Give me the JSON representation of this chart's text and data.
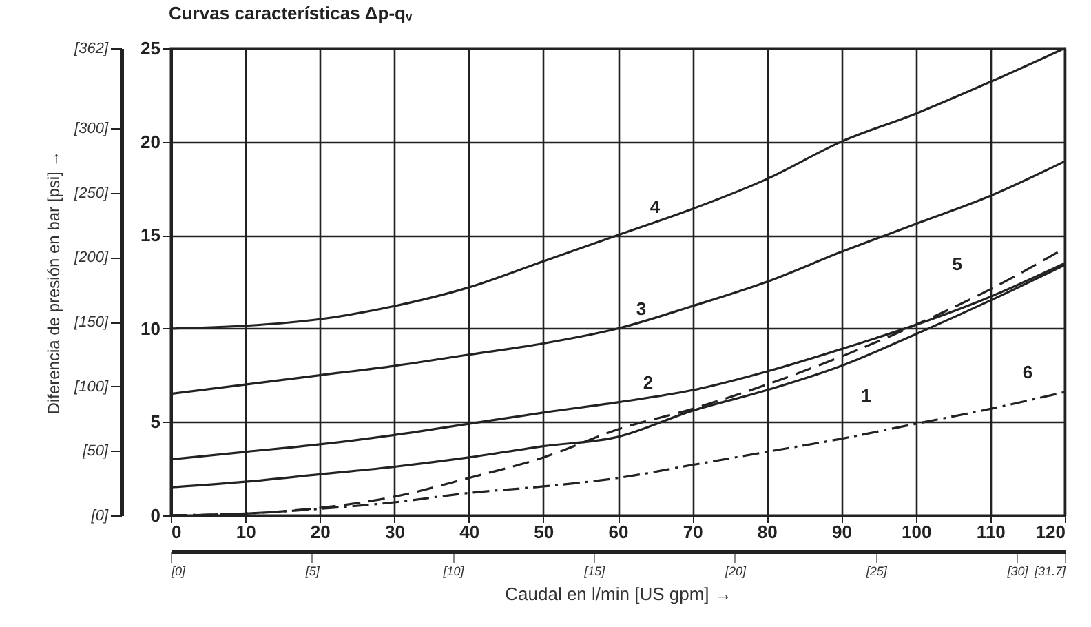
{
  "chart_data": {
    "type": "line",
    "title": "Curvas características Δp-qᵥ",
    "xlabel": "Caudal en l/min [US gpm] →",
    "y2label": "Diferencia de presión en bar [psi] →",
    "x": [
      0,
      10,
      20,
      30,
      40,
      50,
      60,
      70,
      80,
      90,
      100,
      110,
      120
    ],
    "series": [
      {
        "name": "1",
        "color": "#222222",
        "line_style": "solid",
        "values": [
          1.5,
          1.8,
          2.2,
          2.6,
          3.1,
          3.7,
          4.2,
          5.6,
          6.7,
          8.0,
          9.7,
          11.5,
          13.4
        ]
      },
      {
        "name": "2",
        "color": "#222222",
        "line_style": "solid",
        "values": [
          3.0,
          3.4,
          3.8,
          4.3,
          4.9,
          5.5,
          6.05,
          6.7,
          7.7,
          8.9,
          10.2,
          11.7,
          13.5
        ]
      },
      {
        "name": "3",
        "color": "#222222",
        "line_style": "solid",
        "values": [
          6.5,
          7.0,
          7.5,
          8.0,
          8.6,
          9.2,
          10.0,
          11.2,
          12.5,
          14.1,
          15.6,
          17.1,
          18.95
        ]
      },
      {
        "name": "4",
        "color": "#222222",
        "line_style": "solid",
        "values": [
          10.0,
          10.15,
          10.5,
          11.2,
          12.2,
          13.6,
          15.0,
          16.4,
          18.0,
          20.0,
          21.5,
          23.2,
          25.0
        ]
      },
      {
        "name": "5",
        "color": "#222222",
        "line_style": "dashed",
        "values": [
          0,
          0.1,
          0.4,
          1.0,
          2.0,
          3.1,
          4.6,
          5.7,
          7.0,
          8.5,
          10.2,
          12.1,
          14.3
        ]
      },
      {
        "name": "6",
        "color": "#222222",
        "line_style": "dashdot",
        "values": [
          0,
          0.1,
          0.35,
          0.7,
          1.2,
          1.55,
          2.0,
          2.7,
          3.4,
          4.1,
          4.9,
          5.7,
          6.6
        ]
      }
    ],
    "xlim": [
      0,
      120
    ],
    "xticks": [
      0,
      10,
      20,
      30,
      40,
      50,
      60,
      70,
      80,
      90,
      100,
      110,
      120
    ],
    "ylim": [
      0,
      25
    ],
    "yticks": [
      0,
      5,
      10,
      15,
      20,
      25
    ],
    "y2lim": [
      0,
      362
    ],
    "y2ticks": [
      {
        "value": 0,
        "label": "[0]"
      },
      {
        "value": 50,
        "label": "[50]"
      },
      {
        "value": 100,
        "label": "[100]"
      },
      {
        "value": 150,
        "label": "[150]"
      },
      {
        "value": 200,
        "label": "[200]"
      },
      {
        "value": 250,
        "label": "[250]"
      },
      {
        "value": 300,
        "label": "[300]"
      },
      {
        "value": 362,
        "label": "[362]"
      }
    ],
    "x2lim": [
      0,
      31.7
    ],
    "x2ticks": [
      {
        "value": 0,
        "label": "[0]"
      },
      {
        "value": 5,
        "label": "[5]"
      },
      {
        "value": 10,
        "label": "[10]"
      },
      {
        "value": 15,
        "label": "[15]"
      },
      {
        "value": 20,
        "label": "[20]"
      },
      {
        "value": 25,
        "label": "[25]"
      },
      {
        "value": 30,
        "label": "[30]"
      },
      {
        "value": 31.7,
        "label": "[31.7]"
      }
    ],
    "grid": true
  }
}
